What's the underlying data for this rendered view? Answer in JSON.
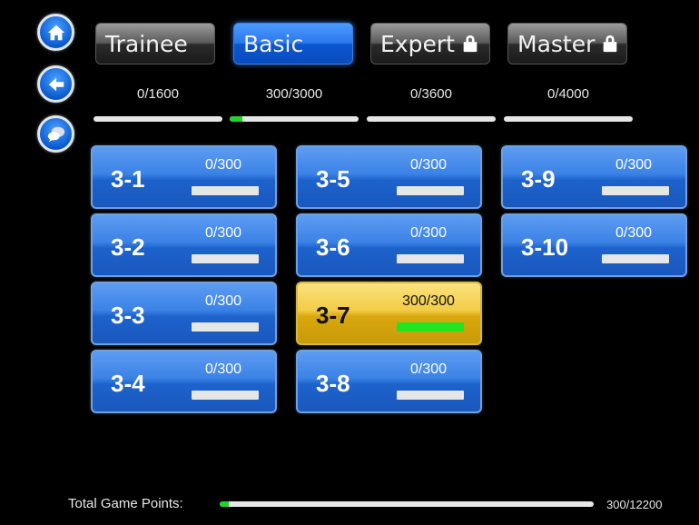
{
  "nav": {
    "home_icon": "home-icon",
    "back_icon": "arrow-left-icon",
    "chat_icon": "chat-bubbles-icon"
  },
  "tabs": [
    {
      "label": "Trainee",
      "locked": false,
      "active": false,
      "progress": "0/1600",
      "value": 0,
      "max": 1600
    },
    {
      "label": "Basic",
      "locked": false,
      "active": true,
      "progress": "300/3000",
      "value": 300,
      "max": 3000
    },
    {
      "label": "Expert",
      "locked": true,
      "active": false,
      "progress": "0/3600",
      "value": 0,
      "max": 3600
    },
    {
      "label": "Master",
      "locked": true,
      "active": false,
      "progress": "0/4000",
      "value": 0,
      "max": 4000
    }
  ],
  "levels": [
    {
      "label": "3-1",
      "score": "0/300",
      "value": 0,
      "max": 300
    },
    {
      "label": "3-2",
      "score": "0/300",
      "value": 0,
      "max": 300
    },
    {
      "label": "3-3",
      "score": "0/300",
      "value": 0,
      "max": 300
    },
    {
      "label": "3-4",
      "score": "0/300",
      "value": 0,
      "max": 300
    },
    {
      "label": "3-5",
      "score": "0/300",
      "value": 0,
      "max": 300
    },
    {
      "label": "3-6",
      "score": "0/300",
      "value": 0,
      "max": 300
    },
    {
      "label": "3-7",
      "score": "300/300",
      "value": 300,
      "max": 300
    },
    {
      "label": "3-8",
      "score": "0/300",
      "value": 0,
      "max": 300
    },
    {
      "label": "3-9",
      "score": "0/300",
      "value": 0,
      "max": 300
    },
    {
      "label": "3-10",
      "score": "0/300",
      "value": 0,
      "max": 300
    }
  ],
  "total": {
    "label": "Total Game Points:",
    "value_text": "300/12200",
    "value": 300,
    "max": 12200
  },
  "colors": {
    "accent": "#2a78ee",
    "complete": "#f1cc45",
    "progress": "#22d42a"
  }
}
